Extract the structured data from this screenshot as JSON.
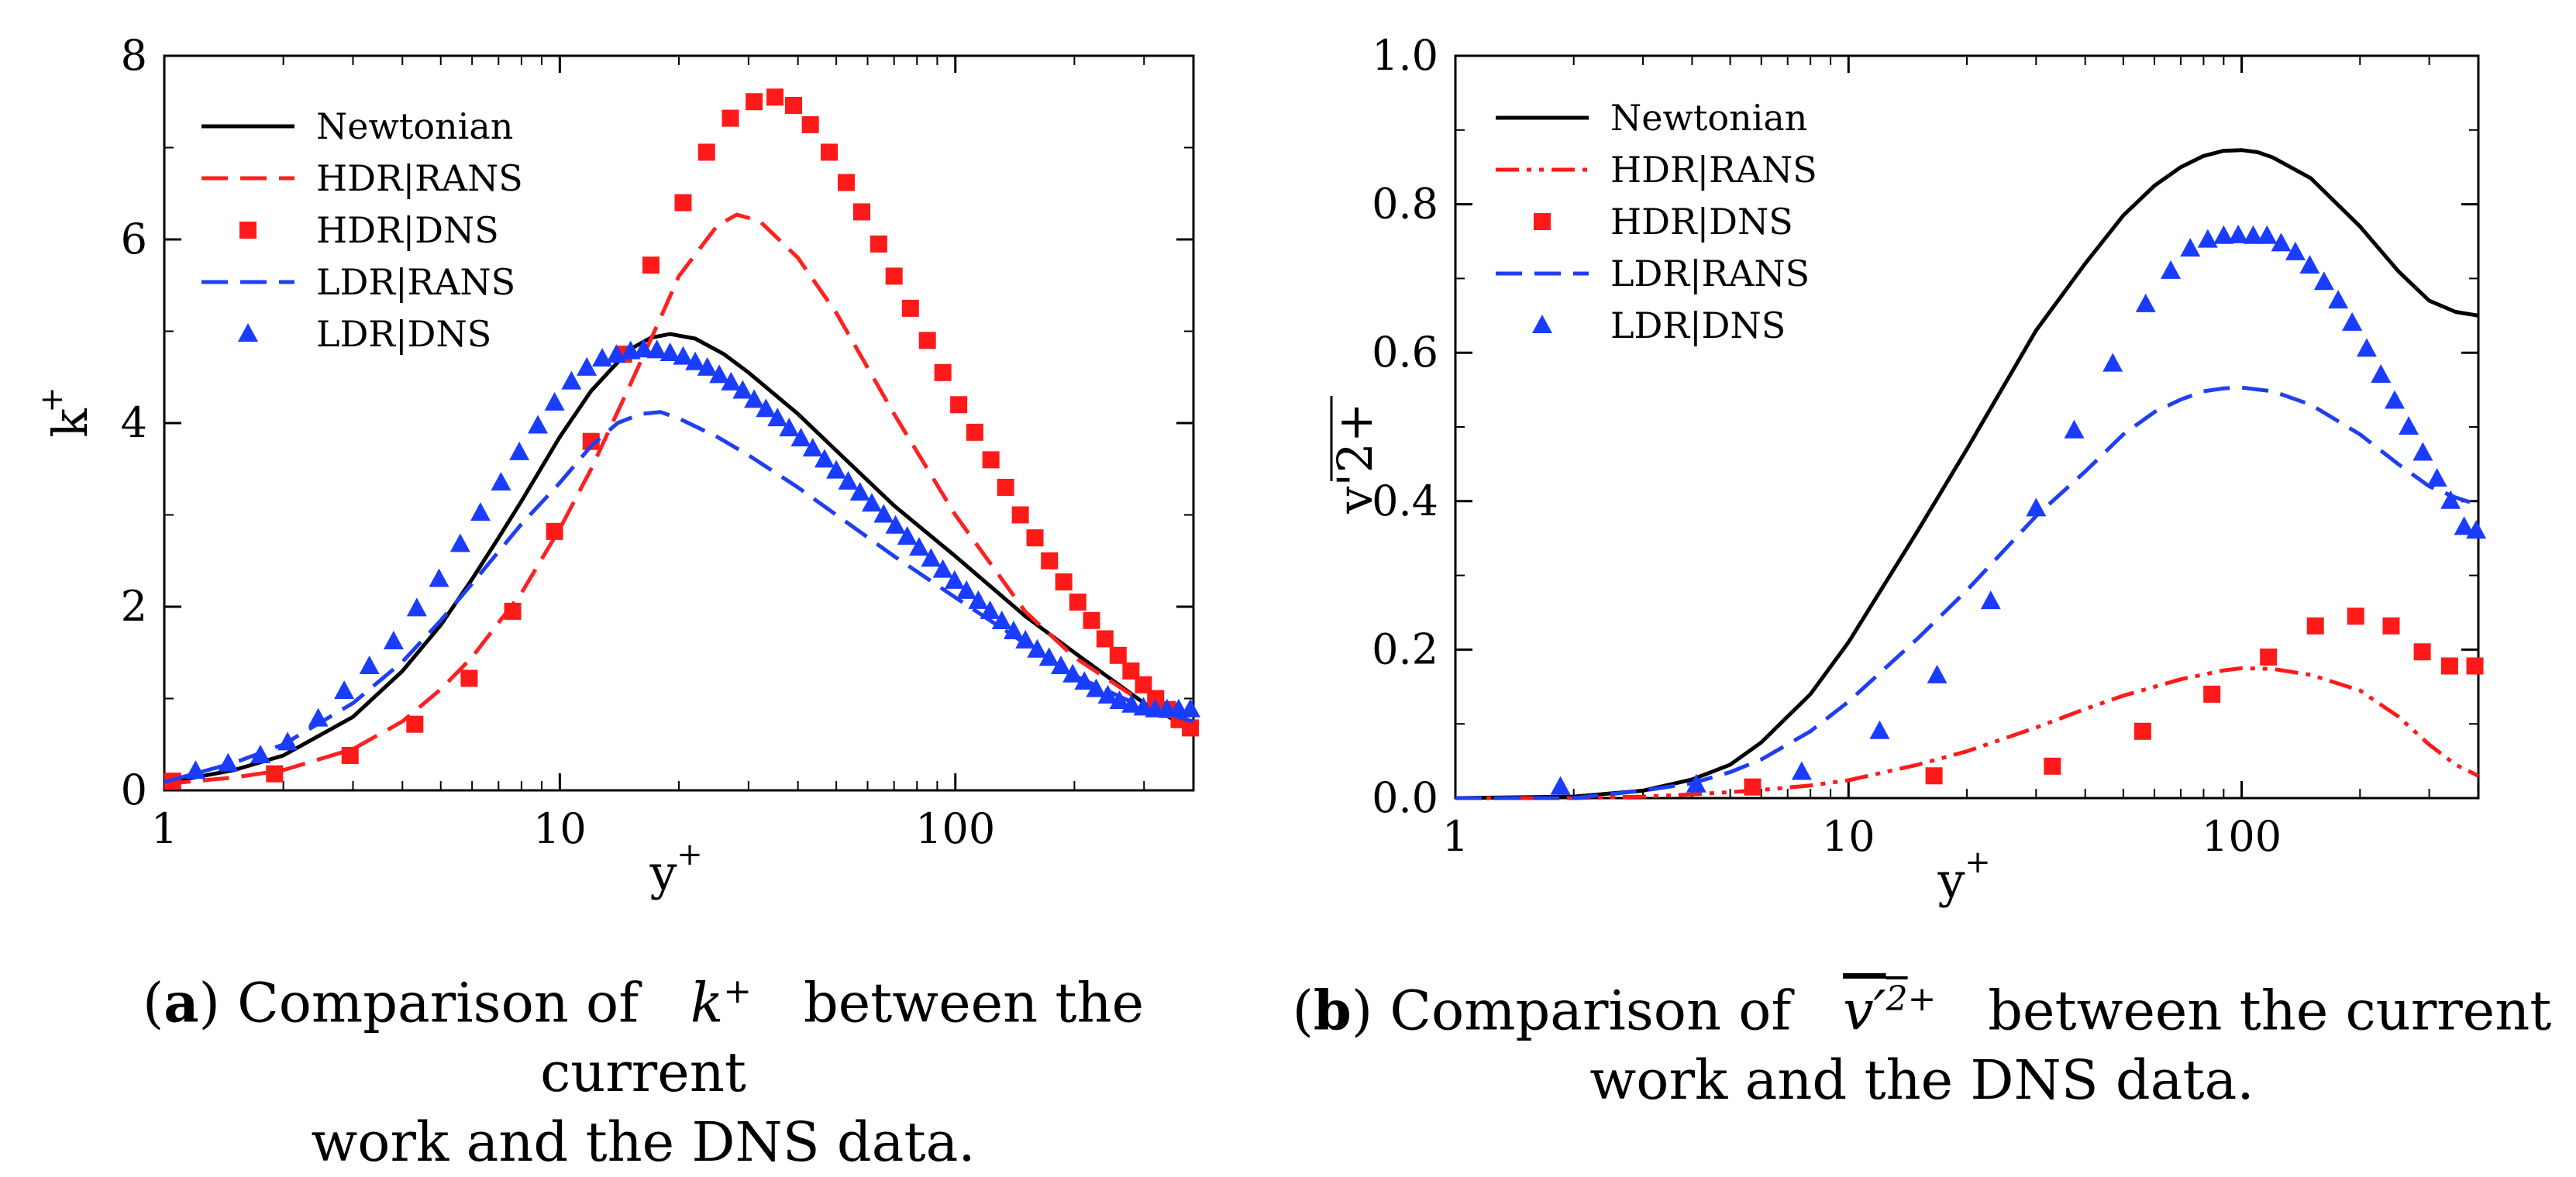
{
  "chart_data": [
    {
      "type": "line",
      "panel": "a",
      "x_scale": "log",
      "xlim": [
        1,
        400
      ],
      "ylim": [
        0,
        8
      ],
      "xticks": [
        "1",
        "10",
        "100"
      ],
      "yticks": [
        "0",
        "2",
        "4",
        "6",
        "8"
      ],
      "xlabel": "y",
      "xlabel_sup": "+",
      "ylabel": "k",
      "ylabel_sup": "+",
      "legend_position": "top-left",
      "series": [
        {
          "name": "Newtonian",
          "style": "solid",
          "color": "#000000",
          "x": [
            1,
            1.5,
            2,
            3,
            4,
            5,
            6,
            7,
            8,
            10,
            12,
            15,
            17,
            19,
            22,
            26,
            30,
            40,
            50,
            70,
            100,
            150,
            200,
            300,
            400
          ],
          "y": [
            0.08,
            0.22,
            0.38,
            0.8,
            1.3,
            1.8,
            2.3,
            2.75,
            3.15,
            3.85,
            4.35,
            4.8,
            4.93,
            4.97,
            4.92,
            4.75,
            4.55,
            4.1,
            3.7,
            3.1,
            2.55,
            1.9,
            1.5,
            0.95,
            0.65
          ]
        },
        {
          "name": "HDR|RANS",
          "style": "dashed",
          "color": "#ff2020",
          "x": [
            1,
            1.5,
            2,
            3,
            4,
            5,
            6,
            8,
            10,
            12,
            15,
            18,
            20,
            25,
            28,
            32,
            40,
            50,
            70,
            100,
            150,
            200,
            300,
            400
          ],
          "y": [
            0.07,
            0.14,
            0.22,
            0.45,
            0.75,
            1.1,
            1.45,
            2.15,
            2.85,
            3.5,
            4.4,
            5.15,
            5.6,
            6.15,
            6.27,
            6.2,
            5.8,
            5.2,
            4.1,
            3.0,
            1.95,
            1.45,
            0.95,
            0.7
          ]
        },
        {
          "name": "HDR|DNS",
          "style": "square",
          "color": "#ff1a1a",
          "x": [
            1.05,
            1.9,
            2.95,
            4.3,
            5.9,
            7.6,
            9.7,
            12,
            14.5,
            17,
            20.5,
            23.5,
            27,
            31,
            35,
            39,
            43,
            48,
            53,
            58,
            64,
            70,
            77,
            85,
            93,
            102,
            112,
            123,
            134,
            146,
            159,
            173,
            188,
            204,
            221,
            239,
            258,
            278,
            299,
            321,
            344,
            368,
            393
          ],
          "y": [
            0.1,
            0.18,
            0.38,
            0.72,
            1.22,
            1.95,
            2.82,
            3.8,
            4.75,
            5.72,
            6.4,
            6.95,
            7.32,
            7.5,
            7.55,
            7.46,
            7.25,
            6.95,
            6.62,
            6.3,
            5.95,
            5.6,
            5.25,
            4.9,
            4.55,
            4.2,
            3.9,
            3.6,
            3.3,
            3.0,
            2.75,
            2.5,
            2.27,
            2.05,
            1.85,
            1.65,
            1.47,
            1.3,
            1.15,
            1.0,
            0.88,
            0.77,
            0.68
          ]
        },
        {
          "name": "LDR|RANS",
          "style": "dashed",
          "color": "#1f3ff0",
          "x": [
            1,
            1.5,
            2,
            3,
            4,
            5,
            6,
            7,
            8,
            10,
            12,
            14,
            16,
            18,
            20,
            25,
            30,
            40,
            50,
            70,
            100,
            150,
            200,
            300,
            400
          ],
          "y": [
            0.09,
            0.3,
            0.5,
            0.95,
            1.4,
            1.85,
            2.25,
            2.6,
            2.9,
            3.35,
            3.75,
            4.0,
            4.1,
            4.12,
            4.05,
            3.85,
            3.65,
            3.3,
            3.0,
            2.55,
            2.1,
            1.6,
            1.25,
            0.9,
            0.75
          ]
        },
        {
          "name": "LDR|DNS",
          "style": "triangle",
          "color": "#1a3cff",
          "x": [
            1.2,
            1.45,
            1.75,
            2.05,
            2.45,
            2.85,
            3.3,
            3.8,
            4.35,
            4.95,
            5.6,
            6.3,
            7.1,
            7.9,
            8.8,
            9.7,
            10.7,
            11.7,
            12.8,
            13.9,
            15.1,
            16.3,
            17.6,
            19,
            20.5,
            22,
            23.6,
            25.3,
            27.1,
            29,
            31,
            33.2,
            35.5,
            38,
            40.7,
            43.6,
            46.7,
            50,
            53.6,
            57.4,
            61.5,
            65.9,
            70.6,
            75.6,
            81,
            86.8,
            93,
            99.6,
            106.7,
            114.3,
            122.4,
            131.1,
            140.4,
            150.4,
            161.1,
            172.6,
            184.9,
            198,
            212,
            227,
            243,
            260,
            279,
            299,
            320,
            343,
            367,
            393
          ],
          "y": [
            0.21,
            0.29,
            0.38,
            0.52,
            0.78,
            1.08,
            1.35,
            1.62,
            1.98,
            2.3,
            2.68,
            3.02,
            3.35,
            3.68,
            3.97,
            4.22,
            4.45,
            4.6,
            4.7,
            4.74,
            4.78,
            4.8,
            4.79,
            4.76,
            4.72,
            4.66,
            4.6,
            4.52,
            4.44,
            4.35,
            4.25,
            4.15,
            4.05,
            3.94,
            3.83,
            3.72,
            3.6,
            3.48,
            3.36,
            3.24,
            3.12,
            3.0,
            2.88,
            2.76,
            2.64,
            2.52,
            2.4,
            2.28,
            2.17,
            2.06,
            1.95,
            1.84,
            1.73,
            1.63,
            1.53,
            1.44,
            1.35,
            1.26,
            1.18,
            1.1,
            1.03,
            0.97,
            0.93,
            0.9,
            0.88,
            0.88,
            0.88,
            0.88
          ]
        }
      ]
    },
    {
      "type": "line",
      "panel": "b",
      "x_scale": "log",
      "xlim": [
        1,
        400
      ],
      "ylim": [
        0,
        1.0
      ],
      "xticks": [
        "1",
        "10",
        "100"
      ],
      "yticks": [
        "0.0",
        "0.2",
        "0.4",
        "0.6",
        "0.8",
        "1.0"
      ],
      "xlabel": "y",
      "xlabel_sup": "+",
      "ylabel": "v'2+",
      "legend_position": "top-left",
      "series": [
        {
          "name": "Newtonian",
          "style": "solid",
          "color": "#000000",
          "x": [
            1,
            2,
            3,
            4,
            5,
            6,
            8,
            10,
            15,
            20,
            30,
            40,
            50,
            60,
            70,
            80,
            90,
            100,
            110,
            120,
            150,
            200,
            250,
            300,
            350,
            400
          ],
          "y": [
            0.0,
            0.002,
            0.01,
            0.025,
            0.045,
            0.075,
            0.14,
            0.21,
            0.36,
            0.47,
            0.63,
            0.72,
            0.785,
            0.825,
            0.85,
            0.865,
            0.872,
            0.873,
            0.87,
            0.863,
            0.835,
            0.77,
            0.71,
            0.67,
            0.655,
            0.65
          ]
        },
        {
          "name": "HDR|RANS",
          "style": "dashdotdot",
          "color": "#ff1a1a",
          "x": [
            1,
            2,
            3,
            4,
            5,
            6,
            8,
            10,
            15,
            20,
            30,
            40,
            50,
            70,
            90,
            100,
            120,
            150,
            200,
            250,
            300,
            350,
            400
          ],
          "y": [
            0.0,
            0.0,
            0.002,
            0.005,
            0.008,
            0.011,
            0.017,
            0.024,
            0.045,
            0.063,
            0.095,
            0.12,
            0.138,
            0.16,
            0.172,
            0.175,
            0.174,
            0.166,
            0.145,
            0.11,
            0.072,
            0.045,
            0.03
          ]
        },
        {
          "name": "HDR|DNS",
          "style": "square",
          "color": "#ff1a1a",
          "x": [
            5.7,
            16.5,
            33,
            56,
            84,
            117,
            154,
            195,
            240,
            288,
            338,
            392
          ],
          "y": [
            0.015,
            0.03,
            0.043,
            0.09,
            0.14,
            0.19,
            0.232,
            0.245,
            0.232,
            0.197,
            0.178,
            0.178
          ]
        },
        {
          "name": "LDR|RANS",
          "style": "dashed",
          "color": "#1f3ff0",
          "x": [
            1,
            2,
            3,
            4,
            5,
            6,
            8,
            10,
            15,
            20,
            30,
            40,
            50,
            60,
            70,
            80,
            90,
            100,
            120,
            150,
            200,
            250,
            300,
            350,
            400
          ],
          "y": [
            0.0,
            0.0,
            0.01,
            0.02,
            0.035,
            0.052,
            0.09,
            0.13,
            0.215,
            0.28,
            0.38,
            0.44,
            0.49,
            0.52,
            0.537,
            0.548,
            0.552,
            0.553,
            0.548,
            0.53,
            0.49,
            0.45,
            0.42,
            0.405,
            0.395
          ]
        },
        {
          "name": "LDR|DNS",
          "style": "triangle",
          "color": "#1a3cff",
          "x": [
            1.85,
            4.1,
            7.6,
            12,
            16.8,
            23,
            30,
            37.5,
            47,
            57,
            66,
            74,
            82,
            90,
            98,
            107,
            116,
            126,
            137,
            149,
            162,
            176,
            191,
            208,
            226,
            245,
            266,
            289,
            314,
            340,
            368,
            395
          ],
          "y": [
            0.015,
            0.018,
            0.035,
            0.09,
            0.165,
            0.265,
            0.39,
            0.495,
            0.585,
            0.665,
            0.71,
            0.74,
            0.752,
            0.757,
            0.758,
            0.757,
            0.757,
            0.747,
            0.735,
            0.717,
            0.695,
            0.67,
            0.64,
            0.605,
            0.57,
            0.535,
            0.5,
            0.465,
            0.43,
            0.4,
            0.365,
            0.36
          ]
        }
      ]
    }
  ],
  "captions": {
    "a": {
      "label": "a",
      "pre": "Comparison of",
      "sym": "k",
      "sup": "+",
      "post": "between the current",
      "line2": "work and the DNS data."
    },
    "b": {
      "label": "b",
      "pre": "Comparison of",
      "sym": "v′",
      "sym_sup": "2",
      "sup": "+",
      "post": "between the current",
      "line2": "work and the DNS data."
    }
  }
}
